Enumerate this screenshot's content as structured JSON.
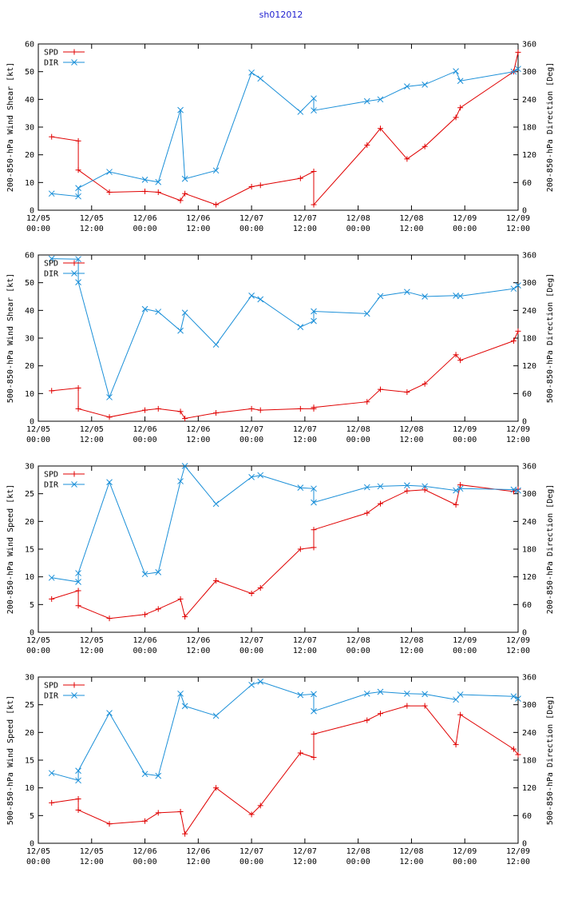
{
  "title": "sh012012",
  "colors": {
    "spd": "#e00000",
    "dir": "#1a8fd8"
  },
  "x_tick_labels": [
    [
      "12/05",
      "00:00"
    ],
    [
      "12/05",
      "12:00"
    ],
    [
      "12/06",
      "00:00"
    ],
    [
      "12/06",
      "12:00"
    ],
    [
      "12/07",
      "00:00"
    ],
    [
      "12/07",
      "12:00"
    ],
    [
      "12/08",
      "00:00"
    ],
    [
      "12/08",
      "12:00"
    ],
    [
      "12/09",
      "00:00"
    ],
    [
      "12/09",
      "12:00"
    ]
  ],
  "chart_data": [
    {
      "type": "line",
      "ylabel": "200-850-hPa Wind Shear [kt]",
      "y2label": "200-850-hPa Direction [Deg]",
      "xlim": [
        0,
        108
      ],
      "ylim": [
        0,
        60
      ],
      "y2lim": [
        0,
        360
      ],
      "yticks": [
        0,
        10,
        20,
        30,
        40,
        50,
        60
      ],
      "y2ticks": [
        0,
        60,
        120,
        180,
        240,
        300,
        360
      ],
      "legend": [
        "SPD",
        "DIR"
      ],
      "series": [
        {
          "name": "SPD",
          "axis": "left",
          "marker": "plus",
          "x": [
            3,
            9,
            9,
            16,
            24,
            27,
            32,
            33,
            40,
            48,
            50,
            59,
            62,
            62,
            74,
            77,
            83,
            87,
            94,
            95,
            107,
            108
          ],
          "y": [
            26.5,
            25,
            14.5,
            6.5,
            6.8,
            6.5,
            3.5,
            6,
            2,
            8.5,
            9,
            11.5,
            14,
            2,
            23.5,
            29.5,
            18.5,
            23,
            33.5,
            37,
            50,
            57
          ]
        },
        {
          "name": "DIR",
          "axis": "right",
          "marker": "x",
          "x": [
            3,
            9,
            9,
            16,
            24,
            27,
            32,
            33,
            40,
            48,
            50,
            59,
            62,
            62,
            74,
            77,
            83,
            87,
            94,
            95,
            107,
            108
          ],
          "y": [
            36,
            30,
            48,
            83,
            66,
            61,
            217,
            68,
            86,
            298,
            285,
            213,
            242,
            216,
            236,
            240,
            268,
            272,
            301,
            280,
            300,
            306
          ]
        }
      ]
    },
    {
      "type": "line",
      "ylabel": "500-850-hPa Wind Shear [kt]",
      "y2label": "500-850-hPa Direction [Deg]",
      "xlim": [
        0,
        108
      ],
      "ylim": [
        0,
        60
      ],
      "y2lim": [
        0,
        360
      ],
      "yticks": [
        0,
        10,
        20,
        30,
        40,
        50,
        60
      ],
      "y2ticks": [
        0,
        60,
        120,
        180,
        240,
        300,
        360
      ],
      "legend": [
        "SPD",
        "DIR"
      ],
      "series": [
        {
          "name": "SPD",
          "axis": "left",
          "marker": "plus",
          "x": [
            3,
            9,
            9,
            16,
            24,
            27,
            32,
            33,
            40,
            48,
            50,
            59,
            62,
            62,
            74,
            77,
            83,
            87,
            94,
            95,
            107,
            108
          ],
          "y": [
            11,
            12,
            4.5,
            1.5,
            4,
            4.5,
            3.5,
            1,
            3,
            4.5,
            4,
            4.5,
            4.5,
            5,
            7,
            11.5,
            10.5,
            13.5,
            24,
            22,
            29,
            32.5
          ]
        },
        {
          "name": "DIR",
          "axis": "right",
          "marker": "x",
          "x": [
            3,
            9,
            9,
            16,
            24,
            27,
            32,
            33,
            40,
            48,
            50,
            59,
            62,
            62,
            74,
            77,
            83,
            87,
            94,
            95,
            107,
            108
          ],
          "y": [
            352,
            351,
            301,
            52,
            243,
            237,
            196,
            235,
            166,
            272,
            264,
            204,
            217,
            238,
            233,
            271,
            280,
            270,
            272,
            271,
            287,
            294
          ]
        }
      ]
    },
    {
      "type": "line",
      "ylabel": "200-850-hPa Wind Speed [kt]",
      "y2label": "200-850-hPa Direction [Deg]",
      "xlim": [
        0,
        108
      ],
      "ylim": [
        0,
        30
      ],
      "y2lim": [
        0,
        360
      ],
      "yticks": [
        0,
        5,
        10,
        15,
        20,
        25,
        30
      ],
      "y2ticks": [
        0,
        60,
        120,
        180,
        240,
        300,
        360
      ],
      "legend": [
        "SPD",
        "DIR"
      ],
      "series": [
        {
          "name": "SPD",
          "axis": "left",
          "marker": "plus",
          "x": [
            3,
            9,
            9,
            16,
            24,
            27,
            32,
            33,
            40,
            48,
            50,
            59,
            62,
            62,
            74,
            77,
            83,
            87,
            94,
            95,
            107,
            108
          ],
          "y": [
            6,
            7.5,
            4.8,
            2.5,
            3.2,
            4.2,
            6,
            2.8,
            9.3,
            7,
            8,
            15,
            15.3,
            18.5,
            21.5,
            23.2,
            25.5,
            25.7,
            23,
            26.6,
            25.4,
            25.8
          ]
        },
        {
          "name": "DIR",
          "axis": "right",
          "marker": "x",
          "x": [
            3,
            9,
            9,
            16,
            24,
            27,
            32,
            33,
            40,
            48,
            50,
            59,
            62,
            62,
            74,
            77,
            83,
            87,
            94,
            95,
            107,
            108
          ],
          "y": [
            118,
            109,
            128,
            325,
            126,
            130,
            327,
            360,
            278,
            336,
            340,
            313,
            311,
            281,
            314,
            316,
            318,
            316,
            307,
            311,
            309,
            307
          ]
        }
      ]
    },
    {
      "type": "line",
      "ylabel": "500-850-hPa Wind Speed [kt]",
      "y2label": "500-850-hPa Direction [Deg]",
      "xlim": [
        0,
        108
      ],
      "ylim": [
        0,
        30
      ],
      "y2lim": [
        0,
        360
      ],
      "yticks": [
        0,
        5,
        10,
        15,
        20,
        25,
        30
      ],
      "y2ticks": [
        0,
        60,
        120,
        180,
        240,
        300,
        360
      ],
      "legend": [
        "SPD",
        "DIR"
      ],
      "series": [
        {
          "name": "SPD",
          "axis": "left",
          "marker": "plus",
          "x": [
            3,
            9,
            9,
            16,
            24,
            27,
            32,
            33,
            40,
            48,
            50,
            59,
            62,
            62,
            74,
            77,
            83,
            87,
            94,
            95,
            107,
            108
          ],
          "y": [
            7.3,
            8,
            6,
            3.5,
            4,
            5.5,
            5.7,
            1.7,
            10,
            5.2,
            6.8,
            16.3,
            15.5,
            19.7,
            22.2,
            23.4,
            24.8,
            24.8,
            17.8,
            23.2,
            17,
            16
          ]
        },
        {
          "name": "DIR",
          "axis": "right",
          "marker": "x",
          "x": [
            3,
            9,
            9,
            16,
            24,
            27,
            32,
            33,
            40,
            48,
            50,
            59,
            62,
            62,
            74,
            77,
            83,
            87,
            94,
            95,
            107,
            108
          ],
          "y": [
            152,
            136,
            157,
            282,
            150,
            146,
            324,
            297,
            276,
            343,
            350,
            321,
            323,
            286,
            324,
            328,
            324,
            323,
            311,
            322,
            318,
            313
          ]
        }
      ]
    }
  ]
}
